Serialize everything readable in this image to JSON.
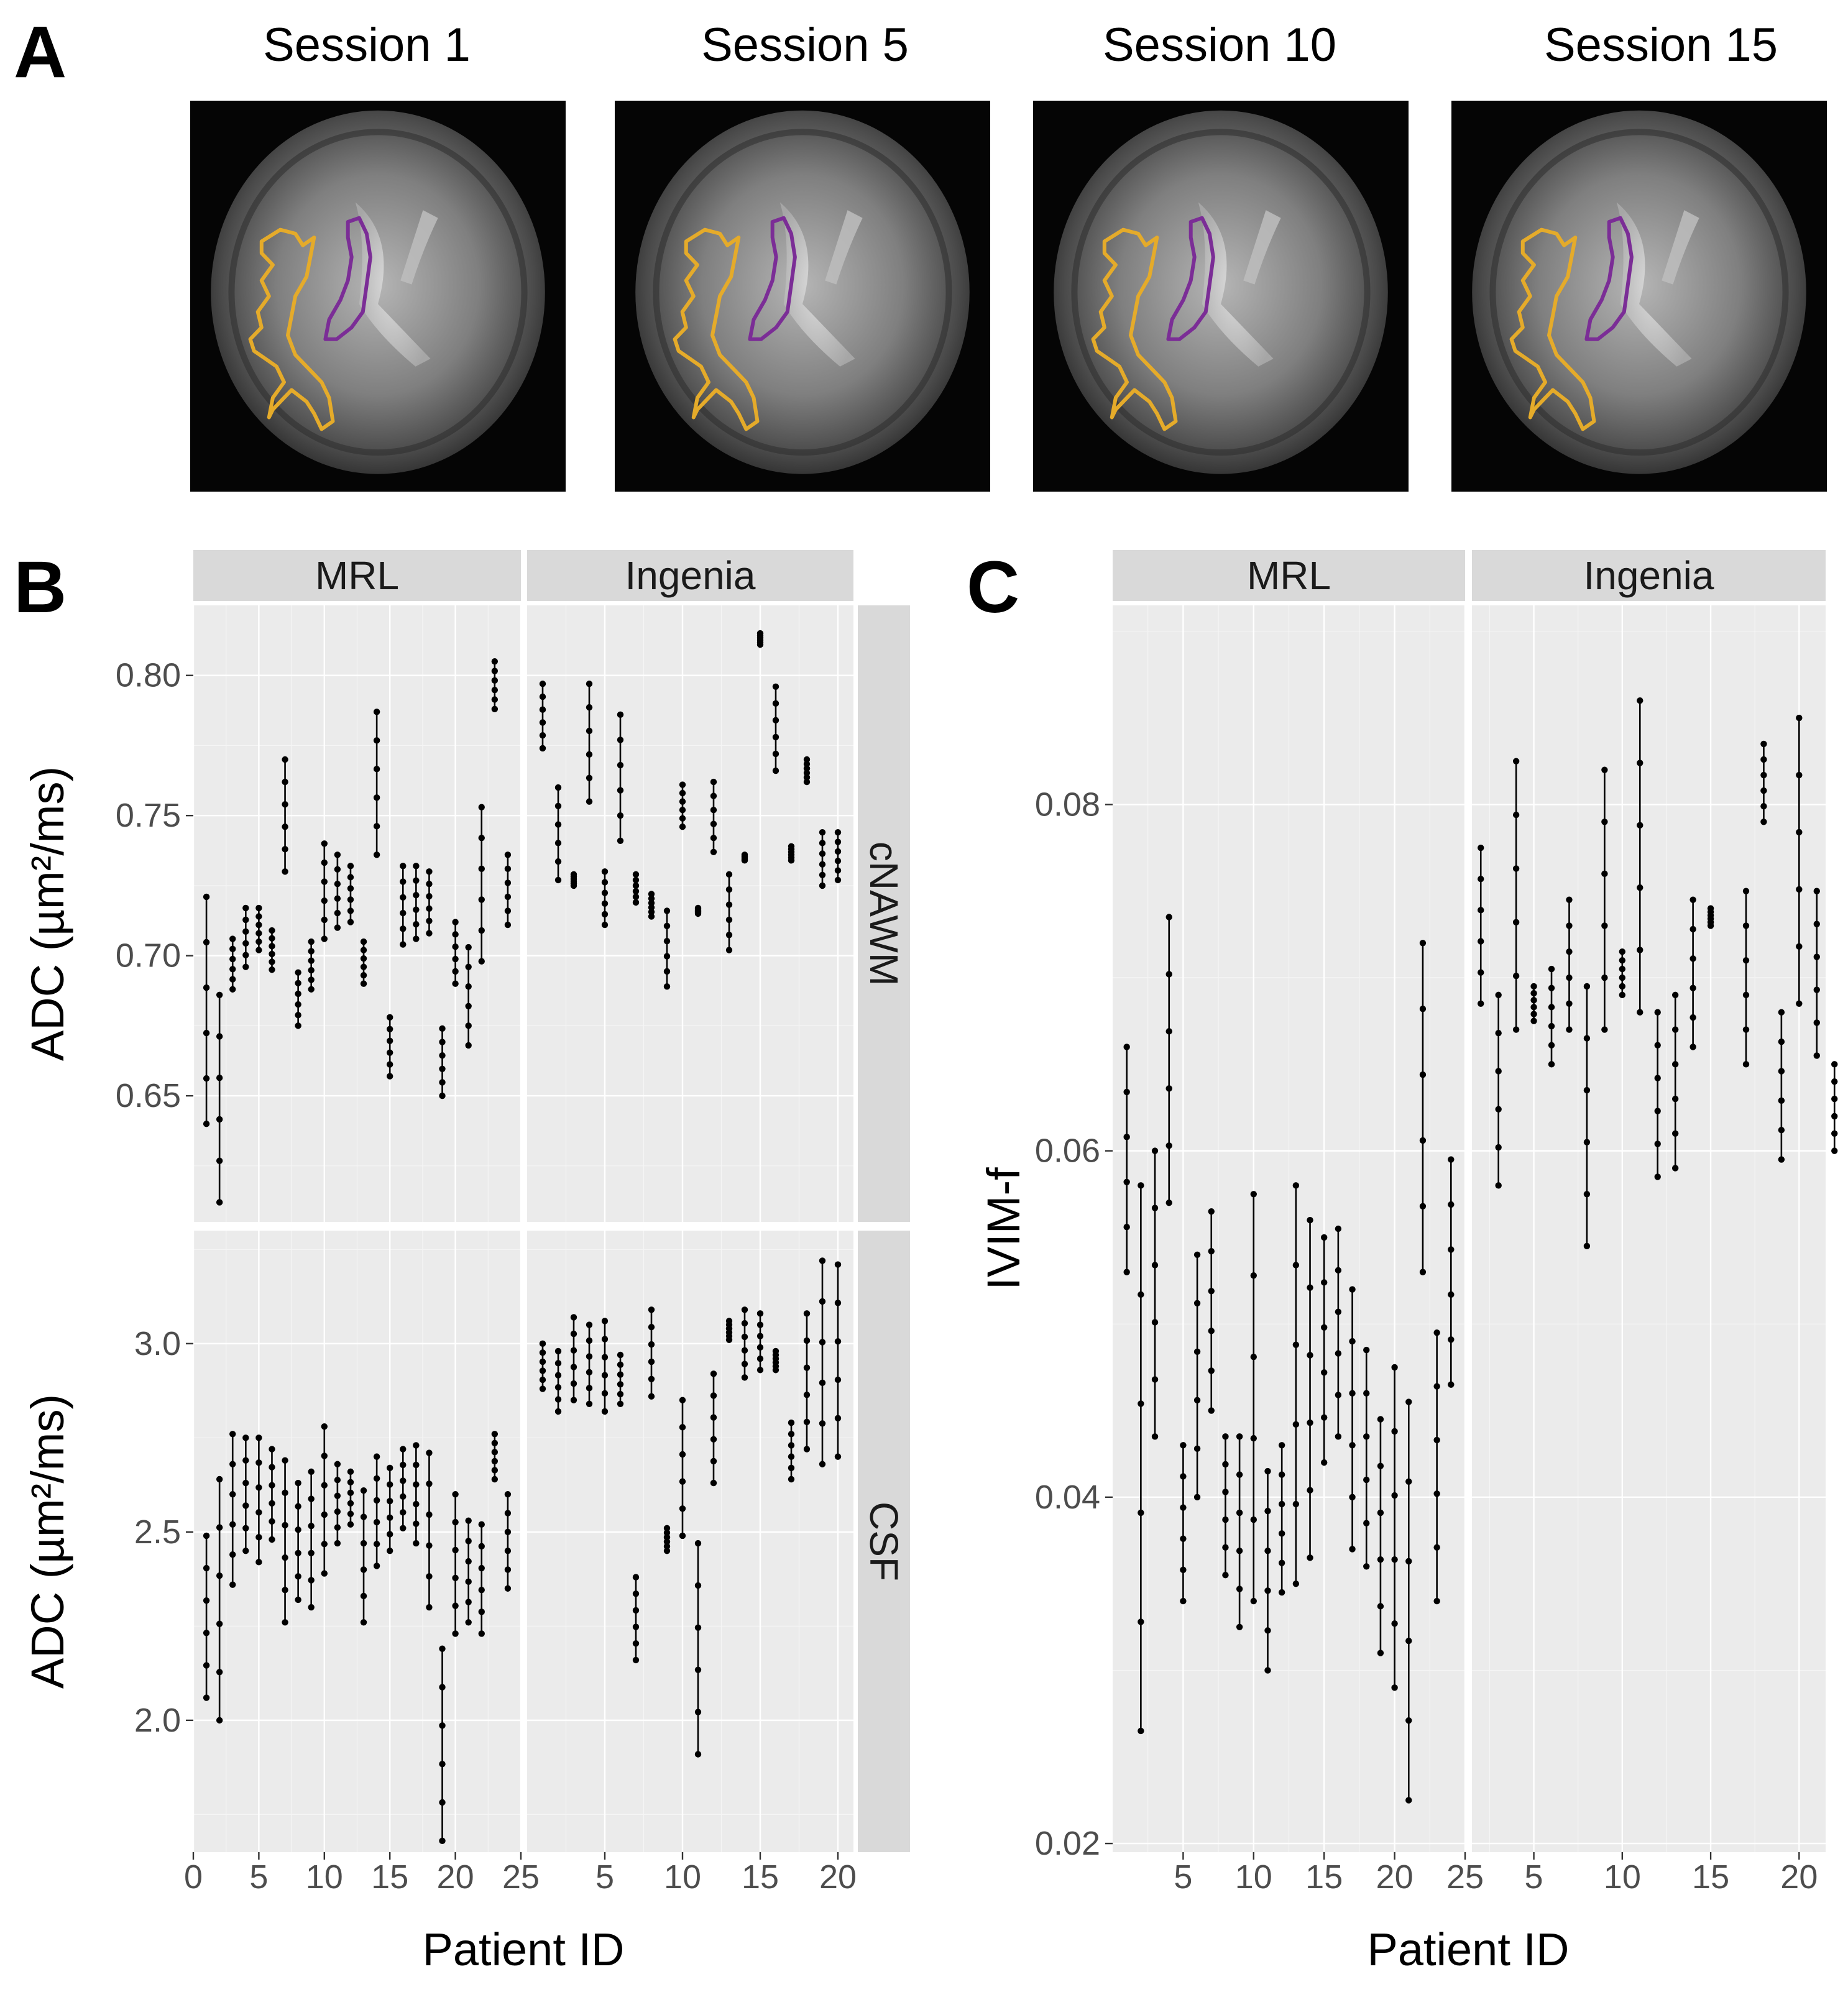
{
  "panel_a": {
    "letter": "A",
    "sessions": [
      "Session 1",
      "Session 5",
      "Session 10",
      "Session 15"
    ],
    "colors": {
      "yellow_contour": "#e5ab2a",
      "purple_contour": "#7b2d96"
    }
  },
  "panel_b": {
    "letter": "B"
  },
  "panel_c": {
    "letter": "C"
  },
  "chart_data": [
    {
      "type": "scatter",
      "panel": "B",
      "facet_cols": [
        "MRL",
        "Ingenia"
      ],
      "facet_rows": [
        "cNAWM",
        "CSF"
      ],
      "xlabel": "Patient ID",
      "ylabel": "ADC (µm²/ms)",
      "xlim": {
        "MRL": [
          0,
          25
        ],
        "Ingenia": [
          0,
          21
        ]
      },
      "xticks": {
        "MRL": [
          0,
          5,
          10,
          15,
          20,
          25
        ],
        "Ingenia": [
          5,
          10,
          15,
          20
        ]
      },
      "ylim": {
        "cNAWM": [
          0.605,
          0.825
        ],
        "CSF": [
          1.65,
          3.3
        ]
      },
      "yticks": {
        "cNAWM": [
          "0.65",
          "0.70",
          "0.75",
          "0.80"
        ],
        "CSF": [
          "2.0",
          "2.5",
          "3.0"
        ]
      },
      "cNAWM": {
        "MRL": [
          {
            "x": 1,
            "lo": 0.64,
            "hi": 0.721
          },
          {
            "x": 2,
            "lo": 0.612,
            "hi": 0.686
          },
          {
            "x": 3,
            "lo": 0.688,
            "hi": 0.706
          },
          {
            "x": 4,
            "lo": 0.696,
            "hi": 0.717
          },
          {
            "x": 5,
            "lo": 0.702,
            "hi": 0.717
          },
          {
            "x": 6,
            "lo": 0.695,
            "hi": 0.709
          },
          {
            "x": 7,
            "lo": 0.73,
            "hi": 0.77
          },
          {
            "x": 8,
            "lo": 0.675,
            "hi": 0.694
          },
          {
            "x": 9,
            "lo": 0.688,
            "hi": 0.705
          },
          {
            "x": 10,
            "lo": 0.706,
            "hi": 0.74
          },
          {
            "x": 11,
            "lo": 0.71,
            "hi": 0.736
          },
          {
            "x": 12,
            "lo": 0.712,
            "hi": 0.732
          },
          {
            "x": 13,
            "lo": 0.69,
            "hi": 0.705
          },
          {
            "x": 14,
            "lo": 0.736,
            "hi": 0.787
          },
          {
            "x": 15,
            "lo": 0.657,
            "hi": 0.678
          },
          {
            "x": 16,
            "lo": 0.704,
            "hi": 0.732
          },
          {
            "x": 17,
            "lo": 0.706,
            "hi": 0.732
          },
          {
            "x": 18,
            "lo": 0.708,
            "hi": 0.73
          },
          {
            "x": 19,
            "lo": 0.65,
            "hi": 0.674
          },
          {
            "x": 20,
            "lo": 0.69,
            "hi": 0.712
          },
          {
            "x": 21,
            "lo": 0.668,
            "hi": 0.703
          },
          {
            "x": 22,
            "lo": 0.698,
            "hi": 0.753
          },
          {
            "x": 23,
            "lo": 0.788,
            "hi": 0.805
          },
          {
            "x": 24,
            "lo": 0.711,
            "hi": 0.736
          }
        ],
        "Ingenia": [
          {
            "x": 1,
            "lo": 0.774,
            "hi": 0.797
          },
          {
            "x": 2,
            "lo": 0.727,
            "hi": 0.76
          },
          {
            "x": 3,
            "lo": 0.725,
            "hi": 0.729
          },
          {
            "x": 4,
            "lo": 0.755,
            "hi": 0.797
          },
          {
            "x": 5,
            "lo": 0.711,
            "hi": 0.73
          },
          {
            "x": 6,
            "lo": 0.741,
            "hi": 0.786
          },
          {
            "x": 7,
            "lo": 0.719,
            "hi": 0.729
          },
          {
            "x": 8,
            "lo": 0.714,
            "hi": 0.722
          },
          {
            "x": 9,
            "lo": 0.689,
            "hi": 0.716
          },
          {
            "x": 10,
            "lo": 0.746,
            "hi": 0.761
          },
          {
            "x": 11,
            "lo": 0.715,
            "hi": 0.717
          },
          {
            "x": 12,
            "lo": 0.737,
            "hi": 0.762
          },
          {
            "x": 13,
            "lo": 0.702,
            "hi": 0.729
          },
          {
            "x": 14,
            "lo": 0.734,
            "hi": 0.736
          },
          {
            "x": 15,
            "lo": 0.811,
            "hi": 0.815
          },
          {
            "x": 16,
            "lo": 0.766,
            "hi": 0.796
          },
          {
            "x": 17,
            "lo": 0.734,
            "hi": 0.739
          },
          {
            "x": 18,
            "lo": 0.762,
            "hi": 0.77
          },
          {
            "x": 19,
            "lo": 0.725,
            "hi": 0.744
          },
          {
            "x": 20,
            "lo": 0.727,
            "hi": 0.744
          }
        ]
      },
      "CSF": {
        "MRL": [
          {
            "x": 1,
            "lo": 2.06,
            "hi": 2.49
          },
          {
            "x": 2,
            "lo": 2.0,
            "hi": 2.64
          },
          {
            "x": 3,
            "lo": 2.36,
            "hi": 2.76
          },
          {
            "x": 4,
            "lo": 2.45,
            "hi": 2.75
          },
          {
            "x": 5,
            "lo": 2.42,
            "hi": 2.75
          },
          {
            "x": 6,
            "lo": 2.48,
            "hi": 2.72
          },
          {
            "x": 7,
            "lo": 2.26,
            "hi": 2.69
          },
          {
            "x": 8,
            "lo": 2.32,
            "hi": 2.63
          },
          {
            "x": 9,
            "lo": 2.3,
            "hi": 2.66
          },
          {
            "x": 10,
            "lo": 2.39,
            "hi": 2.78
          },
          {
            "x": 11,
            "lo": 2.47,
            "hi": 2.68
          },
          {
            "x": 12,
            "lo": 2.52,
            "hi": 2.66
          },
          {
            "x": 13,
            "lo": 2.26,
            "hi": 2.61
          },
          {
            "x": 14,
            "lo": 2.41,
            "hi": 2.7
          },
          {
            "x": 15,
            "lo": 2.45,
            "hi": 2.67
          },
          {
            "x": 16,
            "lo": 2.51,
            "hi": 2.72
          },
          {
            "x": 17,
            "lo": 2.47,
            "hi": 2.73
          },
          {
            "x": 18,
            "lo": 2.3,
            "hi": 2.71
          },
          {
            "x": 19,
            "lo": 1.68,
            "hi": 2.19
          },
          {
            "x": 20,
            "lo": 2.23,
            "hi": 2.6
          },
          {
            "x": 21,
            "lo": 2.26,
            "hi": 2.53
          },
          {
            "x": 22,
            "lo": 2.23,
            "hi": 2.52
          },
          {
            "x": 23,
            "lo": 2.64,
            "hi": 2.76
          },
          {
            "x": 24,
            "lo": 2.35,
            "hi": 2.6
          }
        ],
        "Ingenia": [
          {
            "x": 1,
            "lo": 2.88,
            "hi": 3.0
          },
          {
            "x": 2,
            "lo": 2.82,
            "hi": 2.98
          },
          {
            "x": 3,
            "lo": 2.85,
            "hi": 3.07
          },
          {
            "x": 4,
            "lo": 2.84,
            "hi": 3.05
          },
          {
            "x": 5,
            "lo": 2.82,
            "hi": 3.06
          },
          {
            "x": 6,
            "lo": 2.84,
            "hi": 2.97
          },
          {
            "x": 7,
            "lo": 2.16,
            "hi": 2.38
          },
          {
            "x": 8,
            "lo": 2.86,
            "hi": 3.09
          },
          {
            "x": 9,
            "lo": 2.45,
            "hi": 2.51
          },
          {
            "x": 10,
            "lo": 2.49,
            "hi": 2.85
          },
          {
            "x": 11,
            "lo": 1.91,
            "hi": 2.47
          },
          {
            "x": 12,
            "lo": 2.63,
            "hi": 2.92
          },
          {
            "x": 13,
            "lo": 3.01,
            "hi": 3.06
          },
          {
            "x": 14,
            "lo": 2.91,
            "hi": 3.09
          },
          {
            "x": 15,
            "lo": 2.93,
            "hi": 3.08
          },
          {
            "x": 16,
            "lo": 2.93,
            "hi": 2.98
          },
          {
            "x": 17,
            "lo": 2.64,
            "hi": 2.79
          },
          {
            "x": 18,
            "lo": 2.72,
            "hi": 3.08
          },
          {
            "x": 19,
            "lo": 2.68,
            "hi": 3.22
          },
          {
            "x": 20,
            "lo": 2.7,
            "hi": 3.21
          }
        ]
      }
    },
    {
      "type": "scatter",
      "panel": "C",
      "facet_cols": [
        "MRL",
        "Ingenia"
      ],
      "xlabel": "Patient ID",
      "ylabel": "IVIM-f",
      "xlim": {
        "MRL": [
          0,
          25
        ],
        "Ingenia": [
          1.5,
          21.5
        ]
      },
      "xticks": {
        "MRL": [
          5,
          10,
          15,
          20,
          25
        ],
        "Ingenia": [
          5,
          10,
          15,
          20
        ]
      },
      "ylim": [
        0.0195,
        0.0915
      ],
      "yticks": [
        "0.02",
        "0.04",
        "0.06",
        "0.08"
      ],
      "MRL": [
        {
          "x": 1,
          "lo": 0.053,
          "hi": 0.066
        },
        {
          "x": 2,
          "lo": 0.0265,
          "hi": 0.058
        },
        {
          "x": 3,
          "lo": 0.0435,
          "hi": 0.06
        },
        {
          "x": 4,
          "lo": 0.057,
          "hi": 0.0735
        },
        {
          "x": 5,
          "lo": 0.034,
          "hi": 0.043
        },
        {
          "x": 6,
          "lo": 0.04,
          "hi": 0.054
        },
        {
          "x": 7,
          "lo": 0.045,
          "hi": 0.0565
        },
        {
          "x": 8,
          "lo": 0.0355,
          "hi": 0.0435
        },
        {
          "x": 9,
          "lo": 0.0325,
          "hi": 0.0435
        },
        {
          "x": 10,
          "lo": 0.034,
          "hi": 0.0575
        },
        {
          "x": 11,
          "lo": 0.03,
          "hi": 0.0415
        },
        {
          "x": 12,
          "lo": 0.0345,
          "hi": 0.043
        },
        {
          "x": 13,
          "lo": 0.035,
          "hi": 0.058
        },
        {
          "x": 14,
          "lo": 0.0365,
          "hi": 0.056
        },
        {
          "x": 15,
          "lo": 0.042,
          "hi": 0.055
        },
        {
          "x": 16,
          "lo": 0.0435,
          "hi": 0.0555
        },
        {
          "x": 17,
          "lo": 0.037,
          "hi": 0.052
        },
        {
          "x": 18,
          "lo": 0.036,
          "hi": 0.0485
        },
        {
          "x": 19,
          "lo": 0.031,
          "hi": 0.0445
        },
        {
          "x": 20,
          "lo": 0.029,
          "hi": 0.0475
        },
        {
          "x": 21,
          "lo": 0.0225,
          "hi": 0.0455
        },
        {
          "x": 22,
          "lo": 0.053,
          "hi": 0.072
        },
        {
          "x": 23,
          "lo": 0.034,
          "hi": 0.0495
        },
        {
          "x": 24,
          "lo": 0.0465,
          "hi": 0.0595
        }
      ],
      "Ingenia": [
        {
          "x": 2,
          "lo": 0.0685,
          "hi": 0.0775
        },
        {
          "x": 3,
          "lo": 0.058,
          "hi": 0.069
        },
        {
          "x": 4,
          "lo": 0.067,
          "hi": 0.0825
        },
        {
          "x": 5,
          "lo": 0.0675,
          "hi": 0.0695
        },
        {
          "x": 6,
          "lo": 0.065,
          "hi": 0.0705
        },
        {
          "x": 7,
          "lo": 0.067,
          "hi": 0.0745
        },
        {
          "x": 8,
          "lo": 0.0545,
          "hi": 0.0695
        },
        {
          "x": 9,
          "lo": 0.067,
          "hi": 0.082
        },
        {
          "x": 10,
          "lo": 0.069,
          "hi": 0.0715
        },
        {
          "x": 11,
          "lo": 0.068,
          "hi": 0.086
        },
        {
          "x": 12,
          "lo": 0.0585,
          "hi": 0.068
        },
        {
          "x": 13,
          "lo": 0.059,
          "hi": 0.069
        },
        {
          "x": 14,
          "lo": 0.066,
          "hi": 0.0745
        },
        {
          "x": 15,
          "lo": 0.073,
          "hi": 0.074
        },
        {
          "x": 17,
          "lo": 0.065,
          "hi": 0.075
        },
        {
          "x": 18,
          "lo": 0.079,
          "hi": 0.0835
        },
        {
          "x": 19,
          "lo": 0.0595,
          "hi": 0.068
        },
        {
          "x": 20,
          "lo": 0.0685,
          "hi": 0.085
        },
        {
          "x": 21,
          "lo": 0.0655,
          "hi": 0.075
        },
        {
          "x": 22,
          "lo": 0.06,
          "hi": 0.065
        }
      ]
    }
  ]
}
